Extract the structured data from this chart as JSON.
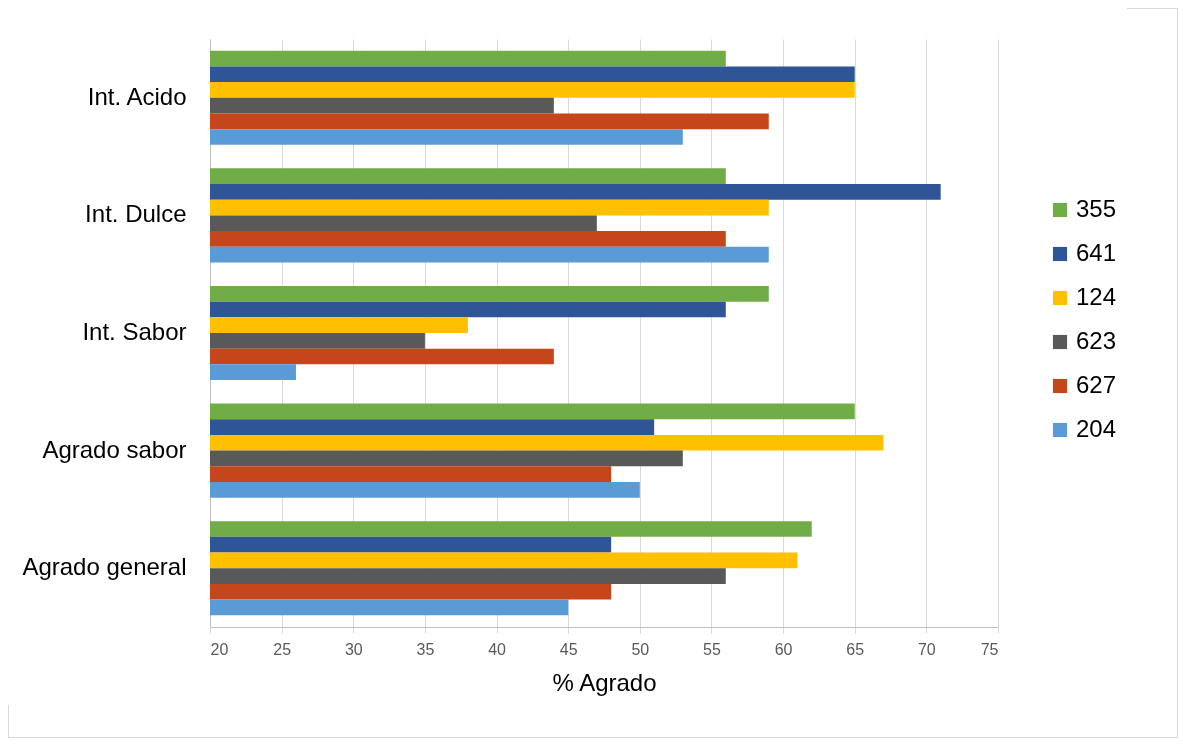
{
  "chart_data": {
    "type": "bar",
    "orientation": "horizontal",
    "xlabel": "% Agrado",
    "categories": [
      "Int. Acido",
      "Int. Dulce",
      "Int. Sabor",
      "Agrado sabor",
      "Agrado general"
    ],
    "series": [
      {
        "name": "355",
        "color": "#70ad47",
        "values": [
          56,
          56,
          59,
          65,
          62
        ]
      },
      {
        "name": "641",
        "color": "#2f5597",
        "values": [
          65,
          71,
          56,
          51,
          48
        ]
      },
      {
        "name": "124",
        "color": "#ffc000",
        "values": [
          65,
          59,
          38,
          67,
          61
        ]
      },
      {
        "name": "623",
        "color": "#595959",
        "values": [
          44,
          47,
          35,
          53,
          56
        ]
      },
      {
        "name": "627",
        "color": "#c4461a",
        "values": [
          59,
          56,
          44,
          48,
          48
        ]
      },
      {
        "name": "204",
        "color": "#5b9bd5",
        "values": [
          53,
          59,
          26,
          50,
          45
        ]
      }
    ],
    "xlim": [
      20,
      75
    ],
    "xticks": [
      20,
      25,
      30,
      35,
      40,
      45,
      50,
      55,
      60,
      65,
      70,
      75
    ],
    "grid": "x",
    "legend": "right"
  }
}
